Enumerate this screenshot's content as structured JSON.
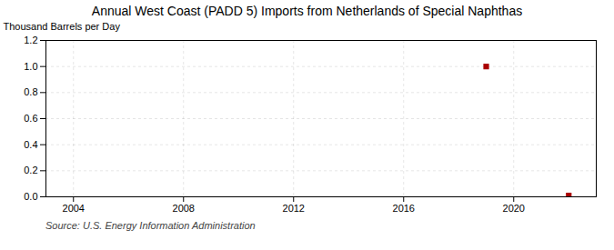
{
  "chart_data": {
    "type": "scatter",
    "title": "Annual West Coast (PADD 5) Imports from Netherlands of Special Naphthas",
    "ylabel": "Thousand Barrels per Day",
    "source": "Source: U.S. Energy Information Administration",
    "x": [
      2019,
      2022
    ],
    "values": [
      1.0,
      0.01
    ],
    "color": "#aa0000",
    "marker": "square",
    "xlim": [
      2003,
      2023
    ],
    "xticks": [
      2004,
      2008,
      2012,
      2016,
      2020
    ],
    "ylim": [
      0,
      1.2
    ],
    "yticks": [
      {
        "value": 0,
        "label": "0.0"
      },
      0.2,
      0.4,
      0.6,
      0.8,
      {
        "value": 1,
        "label": "1.0"
      },
      1.2
    ],
    "grid": true
  }
}
